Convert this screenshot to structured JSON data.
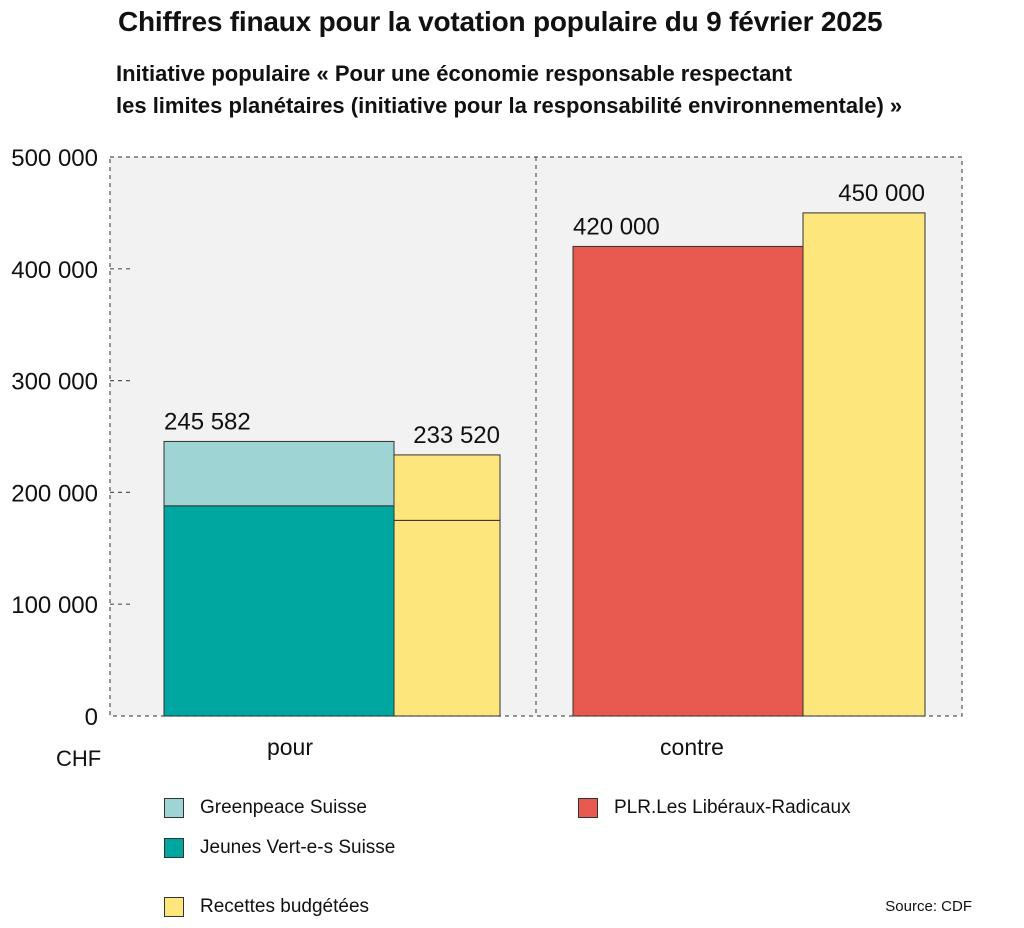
{
  "title": "Chiffres finaux pour la votation populaire du 9 février 2025",
  "subtitle_line1": "Initiative populaire « Pour une économie responsable respectant",
  "subtitle_line2": "les limites planétaires (initiative pour la responsabilité environnementale) »",
  "unit_label": "CHF",
  "source": "Source: CDF",
  "chart_data": {
    "type": "bar",
    "categories": [
      "pour",
      "contre"
    ],
    "ylim": [
      0,
      500000
    ],
    "yticks": [
      0,
      100000,
      200000,
      300000,
      400000,
      500000
    ],
    "ytick_labels": [
      "0",
      "100 000",
      "200 000",
      "300 000",
      "400 000",
      "500 000"
    ],
    "grid": false,
    "legend_position": "bottom",
    "groups": [
      {
        "category": "pour",
        "bars": [
          {
            "kind": "stacked",
            "total": 245582,
            "total_label": "245 582",
            "segments": [
              {
                "name": "Jeunes Vert-e-s Suisse",
                "value": 188000
              },
              {
                "name": "Greenpeace Suisse",
                "value": 57582
              }
            ]
          },
          {
            "kind": "budget",
            "total": 233520,
            "total_label": "233 520",
            "segments": [
              {
                "name": "Recettes budgétées",
                "value": 175000
              },
              {
                "name": "Recettes budgétées",
                "value": 58520
              }
            ]
          }
        ]
      },
      {
        "category": "contre",
        "bars": [
          {
            "kind": "stacked",
            "total": 420000,
            "total_label": "420 000",
            "segments": [
              {
                "name": "PLR.Les Libéraux-Radicaux",
                "value": 420000
              }
            ]
          },
          {
            "kind": "budget",
            "total": 450000,
            "total_label": "450 000",
            "segments": [
              {
                "name": "Recettes budgétées",
                "value": 450000
              }
            ]
          }
        ]
      }
    ],
    "legend": [
      {
        "name": "Greenpeace Suisse",
        "color": "#9fd4d4"
      },
      {
        "name": "Jeunes Vert-e-s Suisse",
        "color": "#00a6a0"
      },
      {
        "name": "Recettes budgétées",
        "color": "#fde77c"
      },
      {
        "name": "PLR.Les Libéraux-Radicaux",
        "color": "#e85a4f"
      }
    ],
    "colors": {
      "Greenpeace Suisse": "#9fd4d4",
      "Jeunes Vert-e-s Suisse": "#00a6a0",
      "Recettes budgétées": "#fde77c",
      "PLR.Les Libéraux-Radicaux": "#e85a4f",
      "plot_background": "#f2f2f2"
    }
  }
}
